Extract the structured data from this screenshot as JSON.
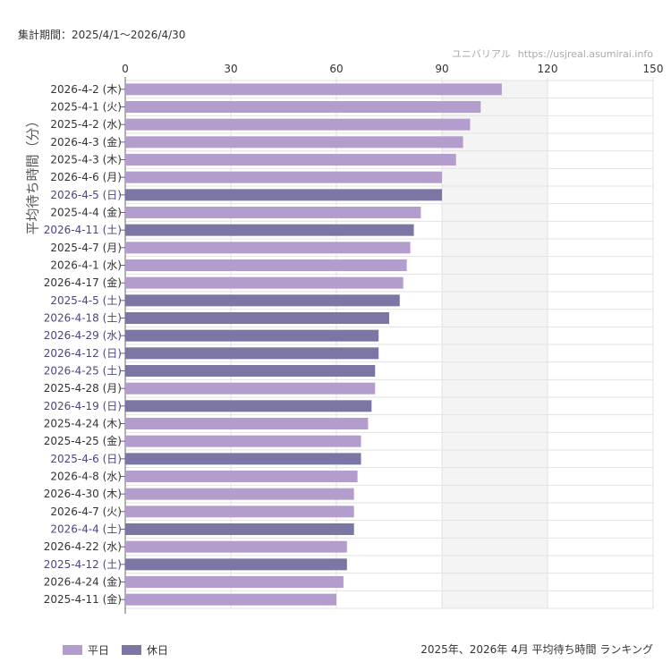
{
  "header": {
    "period": "集計期間：2025/4/1〜2026/4/30",
    "credit_name": "ユニバリアル",
    "credit_url": "https://usjreal.asumirai.info"
  },
  "footer": {
    "caption": "2025年、2026年 4月 平均待ち時間 ランキング"
  },
  "colors": {
    "weekday": "#b39dcc",
    "holiday": "#7b76a3",
    "holiday_label": "#4a4680",
    "weekday_label": "#333333",
    "shade": "#f4f4f4",
    "grid": "#e2e2e2"
  },
  "chart_data": {
    "type": "bar",
    "orientation": "horizontal",
    "title": "",
    "ylabel": "平均待ち時間（分）",
    "xlim": [
      0,
      150
    ],
    "xticks": [
      0,
      30,
      60,
      90,
      120,
      150
    ],
    "x_axis_position": "top",
    "shaded_range": [
      90,
      120
    ],
    "grid": true,
    "legend_position": "bottom-left",
    "legend": [
      {
        "name": "平日",
        "color": "#b39dcc"
      },
      {
        "name": "休日",
        "color": "#7b76a3"
      }
    ],
    "categories": [
      "2026-4-2 (木)",
      "2025-4-1 (火)",
      "2025-4-2 (水)",
      "2026-4-3 (金)",
      "2025-4-3 (木)",
      "2026-4-6 (月)",
      "2026-4-5 (日)",
      "2025-4-4 (金)",
      "2026-4-11 (土)",
      "2025-4-7 (月)",
      "2026-4-1 (水)",
      "2026-4-17 (金)",
      "2025-4-5 (土)",
      "2026-4-18 (土)",
      "2026-4-29 (水)",
      "2026-4-12 (日)",
      "2026-4-25 (土)",
      "2025-4-28 (月)",
      "2026-4-19 (日)",
      "2025-4-24 (木)",
      "2025-4-25 (金)",
      "2025-4-6 (日)",
      "2026-4-8 (水)",
      "2026-4-30 (木)",
      "2026-4-7 (火)",
      "2026-4-4 (土)",
      "2026-4-22 (水)",
      "2025-4-12 (土)",
      "2026-4-24 (金)",
      "2025-4-11 (金)"
    ],
    "values": [
      107,
      101,
      98,
      96,
      94,
      90,
      90,
      84,
      82,
      81,
      80,
      79,
      78,
      75,
      72,
      72,
      71,
      71,
      70,
      69,
      67,
      67,
      66,
      65,
      65,
      65,
      63,
      63,
      62,
      60
    ],
    "groups": [
      "平日",
      "平日",
      "平日",
      "平日",
      "平日",
      "平日",
      "休日",
      "平日",
      "休日",
      "平日",
      "平日",
      "平日",
      "休日",
      "休日",
      "休日",
      "休日",
      "休日",
      "平日",
      "休日",
      "平日",
      "平日",
      "休日",
      "平日",
      "平日",
      "平日",
      "休日",
      "平日",
      "休日",
      "平日",
      "平日"
    ]
  }
}
